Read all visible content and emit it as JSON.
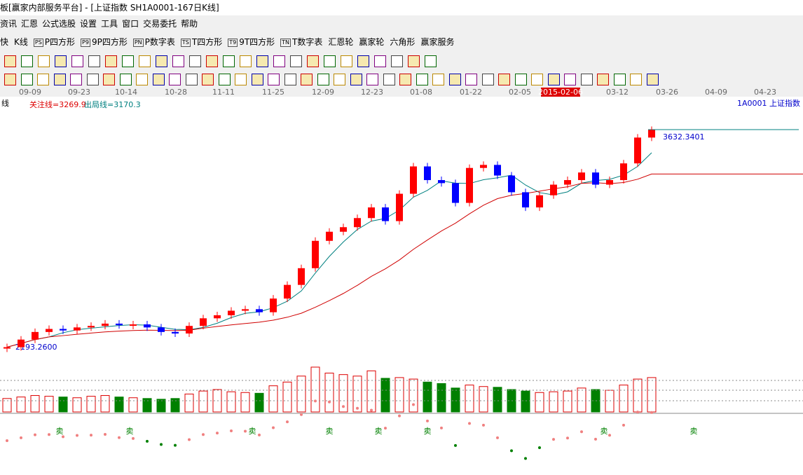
{
  "window": {
    "title": "板[赢家内部服务平台] - [上证指数  SH1A0001-167日K线]"
  },
  "menu": [
    "资讯",
    "汇恩",
    "公式选股",
    "设置",
    "工具",
    "窗口",
    "交易委托",
    "帮助"
  ],
  "toolbar": [
    "快",
    "K线",
    "P四方形",
    "9P四方形",
    "P数字表",
    "T四方形",
    "9T四方形",
    "T数字表",
    "汇恩轮",
    "赢家轮",
    "六角形",
    "赢家服务"
  ],
  "toolbar_icons": [
    "",
    "PS",
    "P9",
    "PN",
    "TS",
    "T9",
    "TN"
  ],
  "dates": [
    "09-09",
    "09-23",
    "10-14",
    "10-28",
    "11-11",
    "11-25",
    "12-09",
    "12-23",
    "01-08",
    "01-22",
    "02-05",
    "2015-02-06",
    "03-12",
    "03-26",
    "04-09",
    "04-23"
  ],
  "selected_date": "2015-02-06",
  "chart_data": {
    "type": "candlestick",
    "chart_name": "线",
    "focus_line": "关注线=3269.9",
    "exit_line": "出局线=3170.3",
    "symbol": "1A0001  上证指数",
    "high": 3632.3401,
    "high_label": "3632.3401",
    "low": 2193.26,
    "low_label": "2193.2600",
    "up_color": "#ff0000",
    "down_color": "#0000ff",
    "closes": [
      2200,
      2250,
      2300,
      2320,
      2310,
      2330,
      2340,
      2355,
      2345,
      2350,
      2330,
      2300,
      2290,
      2340,
      2390,
      2410,
      2440,
      2450,
      2430,
      2520,
      2610,
      2720,
      2900,
      2960,
      2990,
      3050,
      3120,
      3030,
      3210,
      3390,
      3300,
      3280,
      3150,
      3380,
      3400,
      3330,
      3220,
      3120,
      3200,
      3270,
      3300,
      3350,
      3270,
      3300,
      3410,
      3580,
      3630
    ],
    "volumes": [
      18,
      20,
      22,
      21,
      20,
      19,
      21,
      22,
      20,
      19,
      18,
      17,
      18,
      24,
      28,
      30,
      27,
      26,
      25,
      35,
      40,
      48,
      60,
      52,
      50,
      48,
      55,
      45,
      46,
      44,
      40,
      38,
      32,
      36,
      34,
      33,
      30,
      28,
      26,
      27,
      28,
      32,
      30,
      29,
      36,
      44,
      46
    ],
    "signal": "卖"
  }
}
